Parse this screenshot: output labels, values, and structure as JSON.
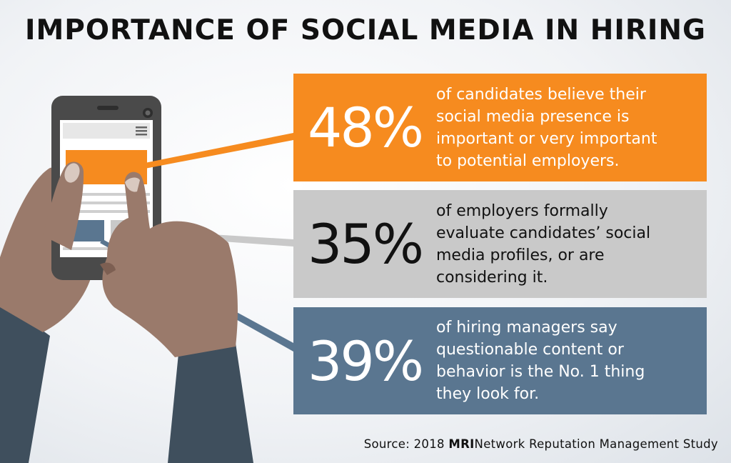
{
  "title": "IMPORTANCE OF SOCIAL MEDIA IN HIRING",
  "stats": [
    {
      "percent": "48%",
      "lines": [
        "of candidates believe their",
        "social media presence is",
        "important or very important",
        "to potential employers."
      ],
      "color": "#f68b1f"
    },
    {
      "percent": "35%",
      "lines": [
        "of employers formally",
        "evaluate candidates’ social",
        "media profiles, or are",
        "considering it."
      ],
      "color": "#c9c9c9"
    },
    {
      "percent": "39%",
      "lines": [
        "of hiring managers say",
        "questionable content or",
        "behavior is the No. 1 thing",
        "they look for."
      ],
      "color": "#5a7690"
    }
  ],
  "source": {
    "prefix": "Source: 2018 ",
    "brand": "MRI",
    "suffix": "Network Reputation Management Study"
  },
  "colors": {
    "skin": "#9a7a6b",
    "skin_shadow": "#7d5f52",
    "sleeve": "#3f4f5d",
    "phone": "#4a4a4a"
  }
}
